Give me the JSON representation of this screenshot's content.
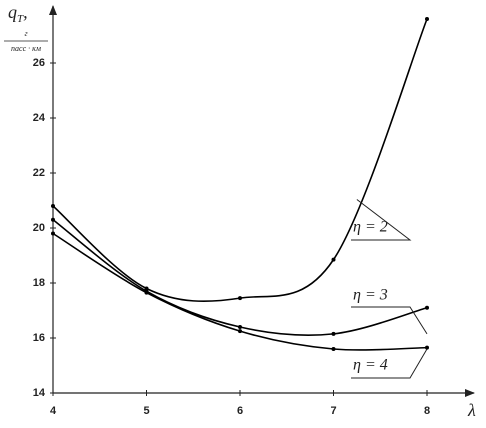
{
  "chart_data": {
    "type": "line",
    "ylabel": "q",
    "ylabel_sub": "T",
    "ylabel_suffix": ",",
    "ylabel_unit_num": "г",
    "ylabel_unit_den": "пасс · км",
    "xlabel": "λ",
    "x": [
      4,
      5,
      6,
      7,
      8
    ],
    "xlim": [
      4,
      8.5
    ],
    "xticks": [
      4,
      5,
      6,
      7,
      8
    ],
    "ylim": [
      14,
      28
    ],
    "yticks": [
      14,
      16,
      18,
      20,
      22,
      24,
      26
    ],
    "grid": false,
    "series": [
      {
        "name": "η = 2",
        "color": "#000000",
        "values": [
          20.8,
          17.8,
          17.45,
          18.85,
          27.6
        ]
      },
      {
        "name": "η = 3",
        "color": "#000000",
        "values": [
          20.3,
          17.7,
          16.4,
          16.15,
          17.1
        ]
      },
      {
        "name": "η = 4",
        "color": "#000000",
        "values": [
          19.8,
          17.65,
          16.25,
          15.6,
          15.65
        ]
      }
    ]
  }
}
